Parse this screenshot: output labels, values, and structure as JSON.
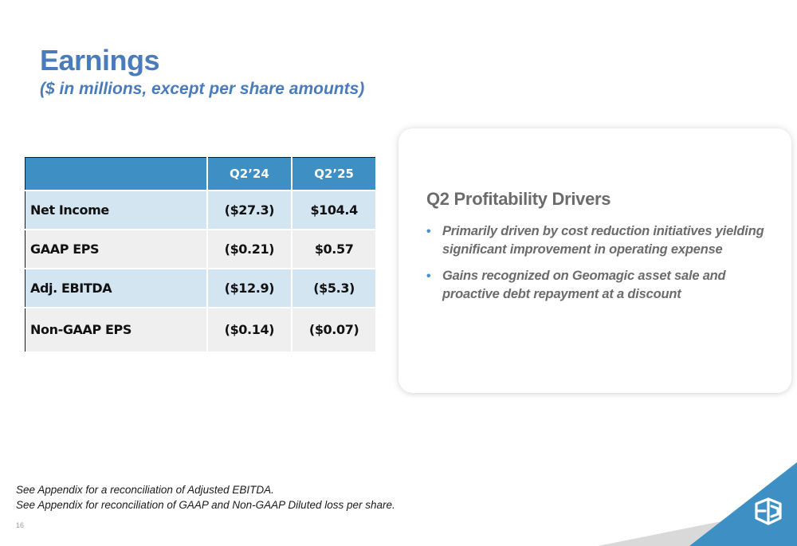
{
  "header": {
    "title": "Earnings",
    "subtitle": "($ in millions, except per share amounts)"
  },
  "table": {
    "columns": [
      "",
      "Q2’24",
      "Q2’25"
    ],
    "rows": [
      {
        "label": "Net Income",
        "q2_24": "($27.3)",
        "q2_25": "$104.4"
      },
      {
        "label": "GAAP EPS",
        "q2_24": "($0.21)",
        "q2_25": "$0.57"
      },
      {
        "label": "Adj. EBITDA",
        "q2_24": "($12.9)",
        "q2_25": "($5.3)"
      },
      {
        "label": "Non-GAAP EPS",
        "q2_24": "($0.14)",
        "q2_25": "($0.07)"
      }
    ]
  },
  "drivers": {
    "title": "Q2 Profitability Drivers",
    "bullets": [
      "Primarily driven by cost reduction initiatives yielding significant improvement in operating expense",
      "Gains recognized on Geomagic asset sale and proactive debt repayment at a discount"
    ]
  },
  "footnotes": [
    "See Appendix for a reconciliation of Adjusted EBITDA.",
    "See Appendix for reconciliation of GAAP and Non-GAAP Diluted loss per share."
  ],
  "page_number": "16",
  "logo": {
    "icon": "3d-systems-logo-icon"
  },
  "colors": {
    "title_blue": "#4a7cbc",
    "table_header": "#3d8fc4",
    "row_light_blue": "#d4e5f2",
    "row_grey": "#efefef",
    "drivers_text": "#6b6b6b",
    "corner_blue": "#3d8fc4"
  }
}
